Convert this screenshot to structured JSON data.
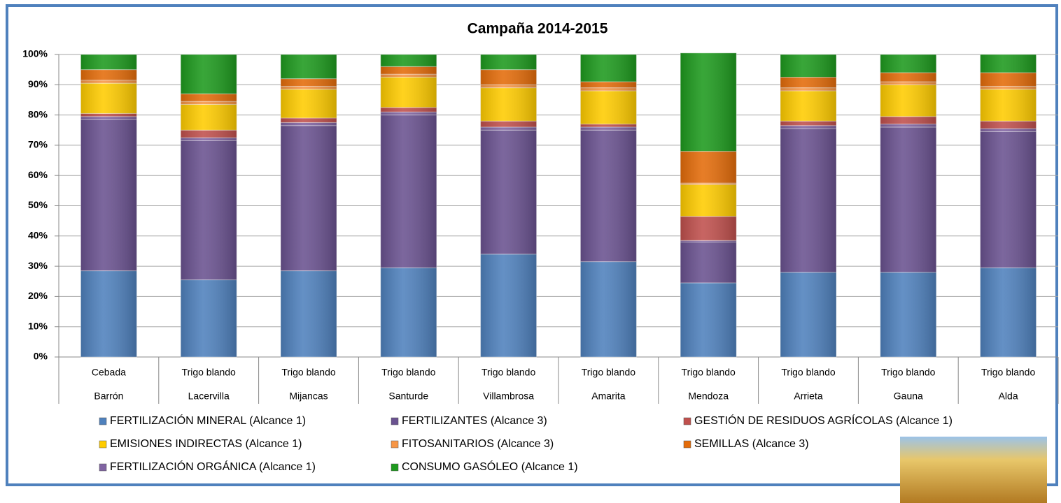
{
  "chart_data": {
    "type": "stacked_bar",
    "title": "Campaña 2014-2015",
    "categories": [
      [
        "Cebada",
        "Barrón"
      ],
      [
        "Trigo blando",
        "Lacervilla"
      ],
      [
        "Trigo blando",
        "Mijancas"
      ],
      [
        "Trigo blando",
        "Santurde"
      ],
      [
        "Trigo blando",
        "Villambrosa"
      ],
      [
        "Trigo blando",
        "Amarita"
      ],
      [
        "Trigo blando",
        "Mendoza"
      ],
      [
        "Trigo blando",
        "Arrieta"
      ],
      [
        "Trigo blando",
        "Gauna"
      ],
      [
        "Trigo blando",
        "Alda"
      ]
    ],
    "series": [
      {
        "name": "FERTILIZACIÓN MINERAL (Alcance 1)",
        "color": "#4f81bd",
        "values": [
          28.5,
          25.5,
          28.5,
          29.5,
          34,
          31.5,
          24.5,
          28,
          28,
          29.5
        ]
      },
      {
        "name": "FERTILIZANTES (Alcance 3)",
        "color": "#6a5290",
        "values": [
          50,
          46,
          48,
          50.5,
          41,
          43.5,
          13.5,
          47.5,
          48,
          45
        ]
      },
      {
        "name": "GESTIÓN DE RESIDUOS AGRÍCOLAS (Alcance 1)",
        "color": "#c0504d",
        "values": [
          1,
          2.5,
          1.5,
          1.5,
          2,
          1,
          8,
          1.5,
          2.5,
          2.5
        ]
      },
      {
        "name": "EMISIONES INDIRECTAS (Alcance 1)",
        "color": "#ffcc00",
        "values": [
          10,
          8.5,
          9.5,
          10,
          11,
          11,
          10.5,
          10,
          10.5,
          10.5
        ]
      },
      {
        "name": "FITOSANITARIOS (Alcance 3)",
        "color": "#f79646",
        "values": [
          1,
          1,
          1,
          1,
          1,
          1,
          0.5,
          1,
          1,
          1
        ]
      },
      {
        "name": "SEMILLAS (Alcance 3)",
        "color": "#e46c0a",
        "values": [
          3.5,
          2.5,
          2.5,
          2.5,
          5,
          2,
          10.5,
          3.5,
          3,
          4.5
        ]
      },
      {
        "name": "FERTILIZACIÓN ORGÁNICA (Alcance 1)",
        "color": "#8064a2",
        "values": [
          1,
          1,
          1,
          1,
          1,
          1,
          0.5,
          1,
          1,
          1
        ]
      },
      {
        "name": "CONSUMO GASÓLEO (Alcance 1)",
        "color": "#1e9a1e",
        "values": [
          5,
          13,
          8,
          4,
          5,
          9,
          32.5,
          7.5,
          6,
          6
        ]
      }
    ],
    "ylim": [
      0,
      100
    ],
    "yticks": [
      {
        "value": 0,
        "label": "0%"
      },
      {
        "value": 10,
        "label": "10%"
      },
      {
        "value": 20,
        "label": "20%"
      },
      {
        "value": 30,
        "label": "30%"
      },
      {
        "value": 40,
        "label": "40%"
      },
      {
        "value": 50,
        "label": "50%"
      },
      {
        "value": 60,
        "label": "60%"
      },
      {
        "value": 70,
        "label": "70%"
      },
      {
        "value": 80,
        "label": "80%"
      },
      {
        "value": 90,
        "label": "90%"
      },
      {
        "value": 100,
        "label": "100%"
      }
    ],
    "grid": true
  }
}
